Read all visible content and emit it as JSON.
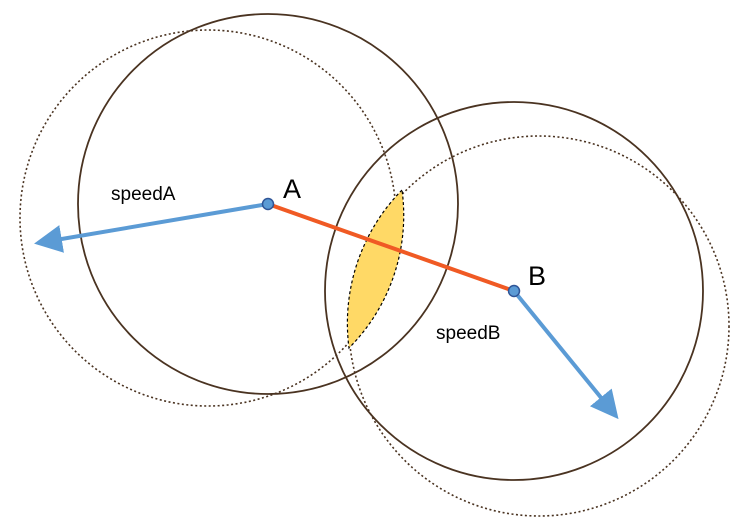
{
  "labels": {
    "point_a": "A",
    "point_b": "B",
    "speed_a": "speedA",
    "speed_b": "speedB"
  },
  "colors": {
    "circle": "#4a3321",
    "connector": "#f05a24",
    "velocity": "#5b9bd5",
    "point_fill": "#5b9bd5",
    "point_stroke": "#2f5597",
    "overlap_fill": "#ffd966"
  }
}
